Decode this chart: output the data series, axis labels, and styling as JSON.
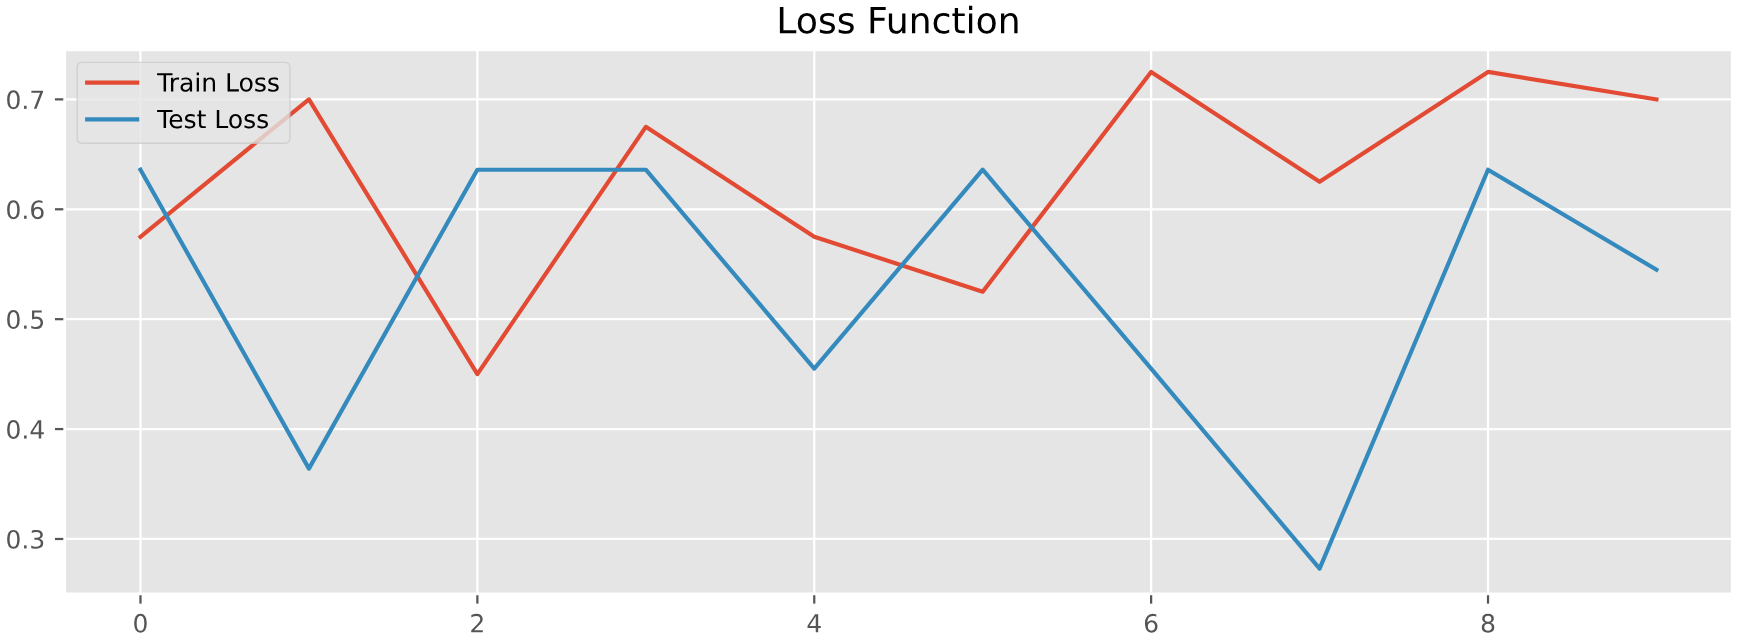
{
  "chart_data": {
    "type": "line",
    "title": "Loss Function",
    "x": [
      0,
      1,
      2,
      3,
      4,
      5,
      6,
      7,
      8,
      9
    ],
    "series": [
      {
        "name": "Train Loss",
        "color": "#e24a33",
        "values": [
          0.575,
          0.7,
          0.45,
          0.675,
          0.575,
          0.525,
          0.725,
          0.625,
          0.725,
          0.7
        ]
      },
      {
        "name": "Test Loss",
        "color": "#348abd",
        "values": [
          0.636,
          0.364,
          0.636,
          0.636,
          0.455,
          0.636,
          0.455,
          0.273,
          0.636,
          0.545
        ]
      }
    ],
    "xlim": [
      -0.45,
      9.45
    ],
    "ylim": [
      0.25,
      0.745
    ],
    "xticks": [
      0,
      2,
      4,
      6,
      8
    ],
    "yticks": [
      0.3,
      0.4,
      0.5,
      0.6,
      0.7
    ],
    "grid": true,
    "legend": "top left"
  }
}
